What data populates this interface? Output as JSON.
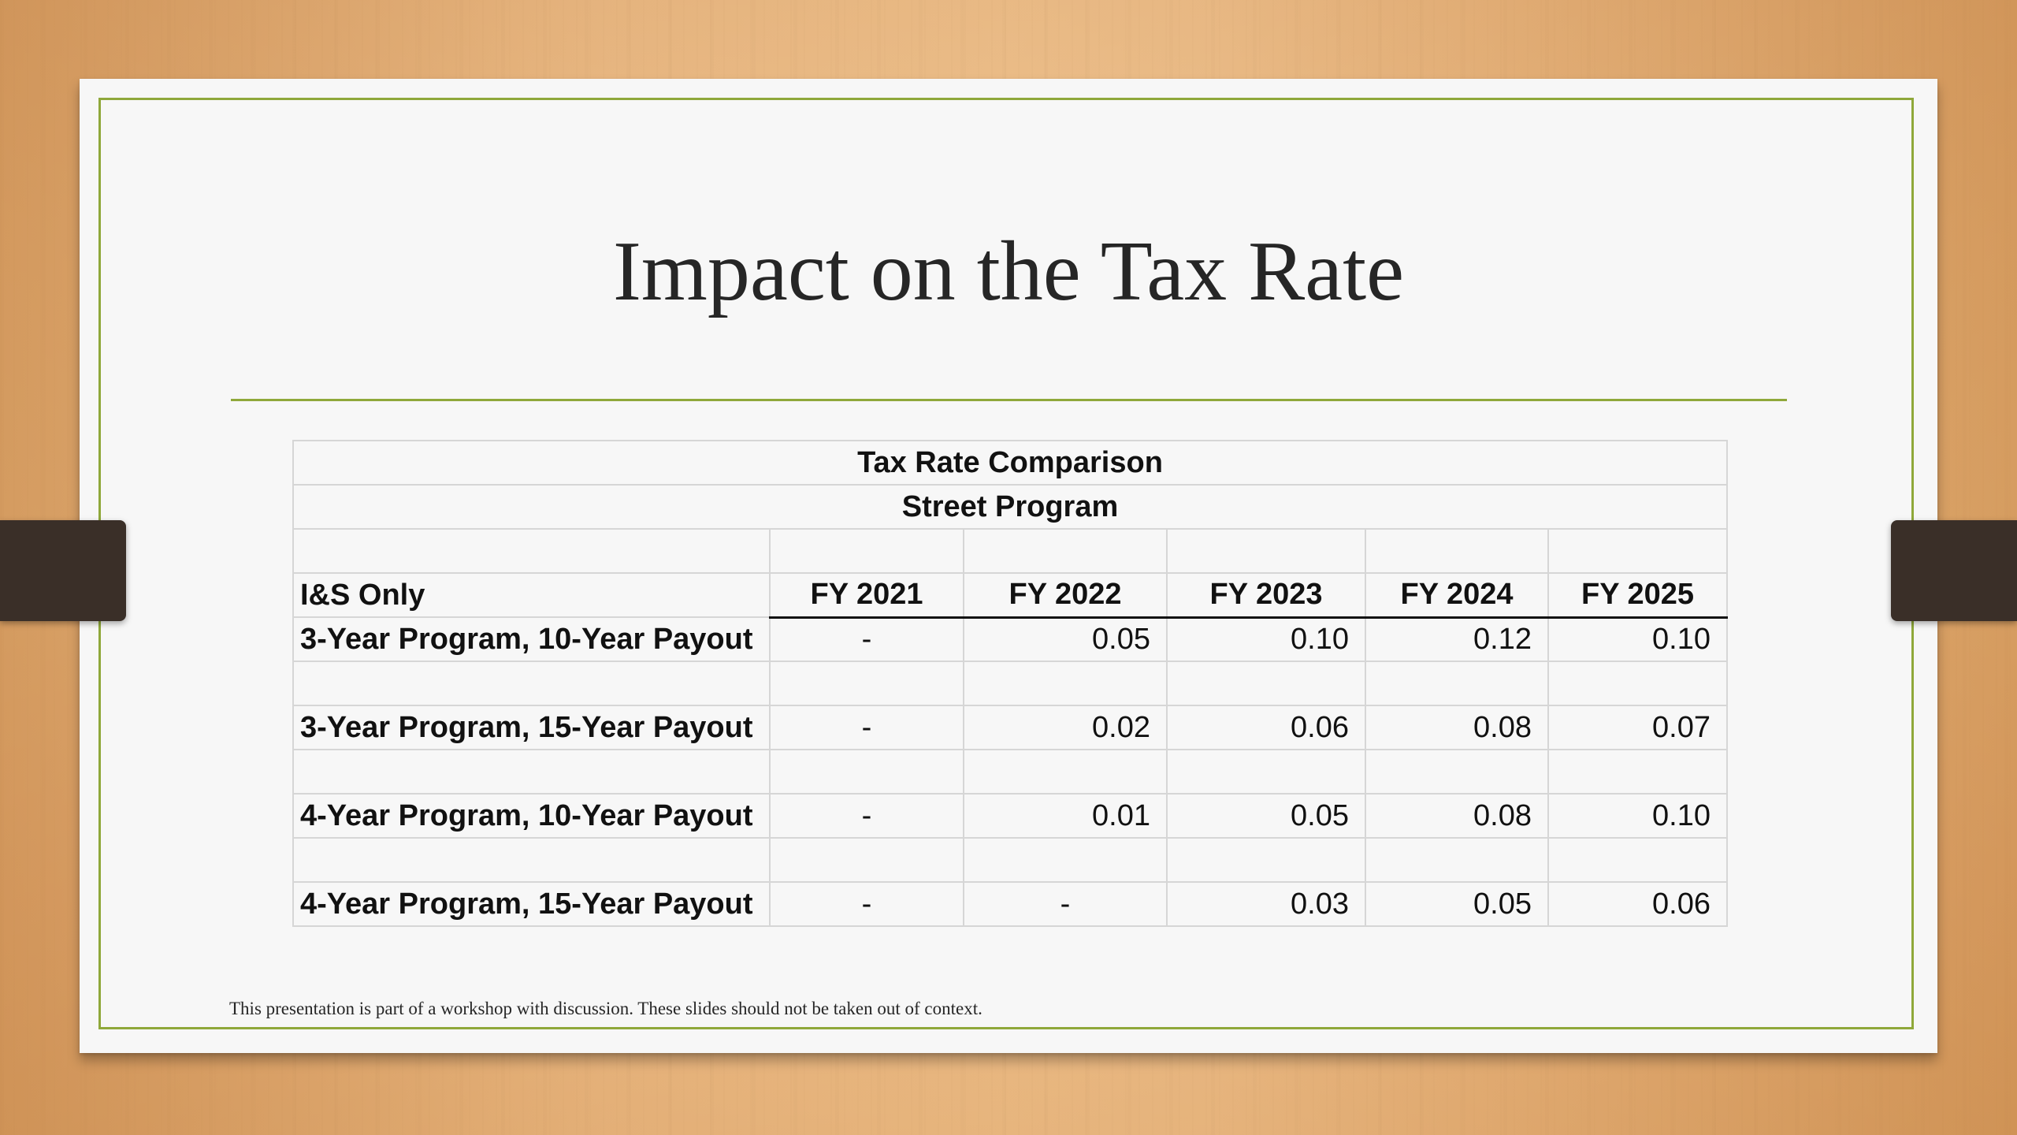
{
  "slide": {
    "title": "Impact on the Tax Rate",
    "footnote": "This presentation is part of a workshop with discussion. These slides should not be taken out of context."
  },
  "table": {
    "title": "Tax Rate Comparison",
    "subtitle": "Street Program",
    "header_label": "I&S Only",
    "columns": [
      "FY 2021",
      "FY 2022",
      "FY 2023",
      "FY 2024",
      "FY 2025"
    ],
    "rows": [
      {
        "label": "3-Year Program, 10-Year Payout",
        "values": [
          "-",
          "0.05",
          "0.10",
          "0.12",
          "0.10"
        ]
      },
      {
        "label": "3-Year Program, 15-Year Payout",
        "values": [
          "-",
          "0.02",
          "0.06",
          "0.08",
          "0.07"
        ]
      },
      {
        "label": "4-Year Program, 10-Year Payout",
        "values": [
          "-",
          "0.01",
          "0.05",
          "0.08",
          "0.10"
        ]
      },
      {
        "label": "4-Year Program, 15-Year Payout",
        "values": [
          "-",
          "-",
          "0.03",
          "0.05",
          "0.06"
        ]
      }
    ]
  },
  "colors": {
    "accent_green": "#8fa83a",
    "clip": "#3a2f28",
    "text": "#262626"
  }
}
